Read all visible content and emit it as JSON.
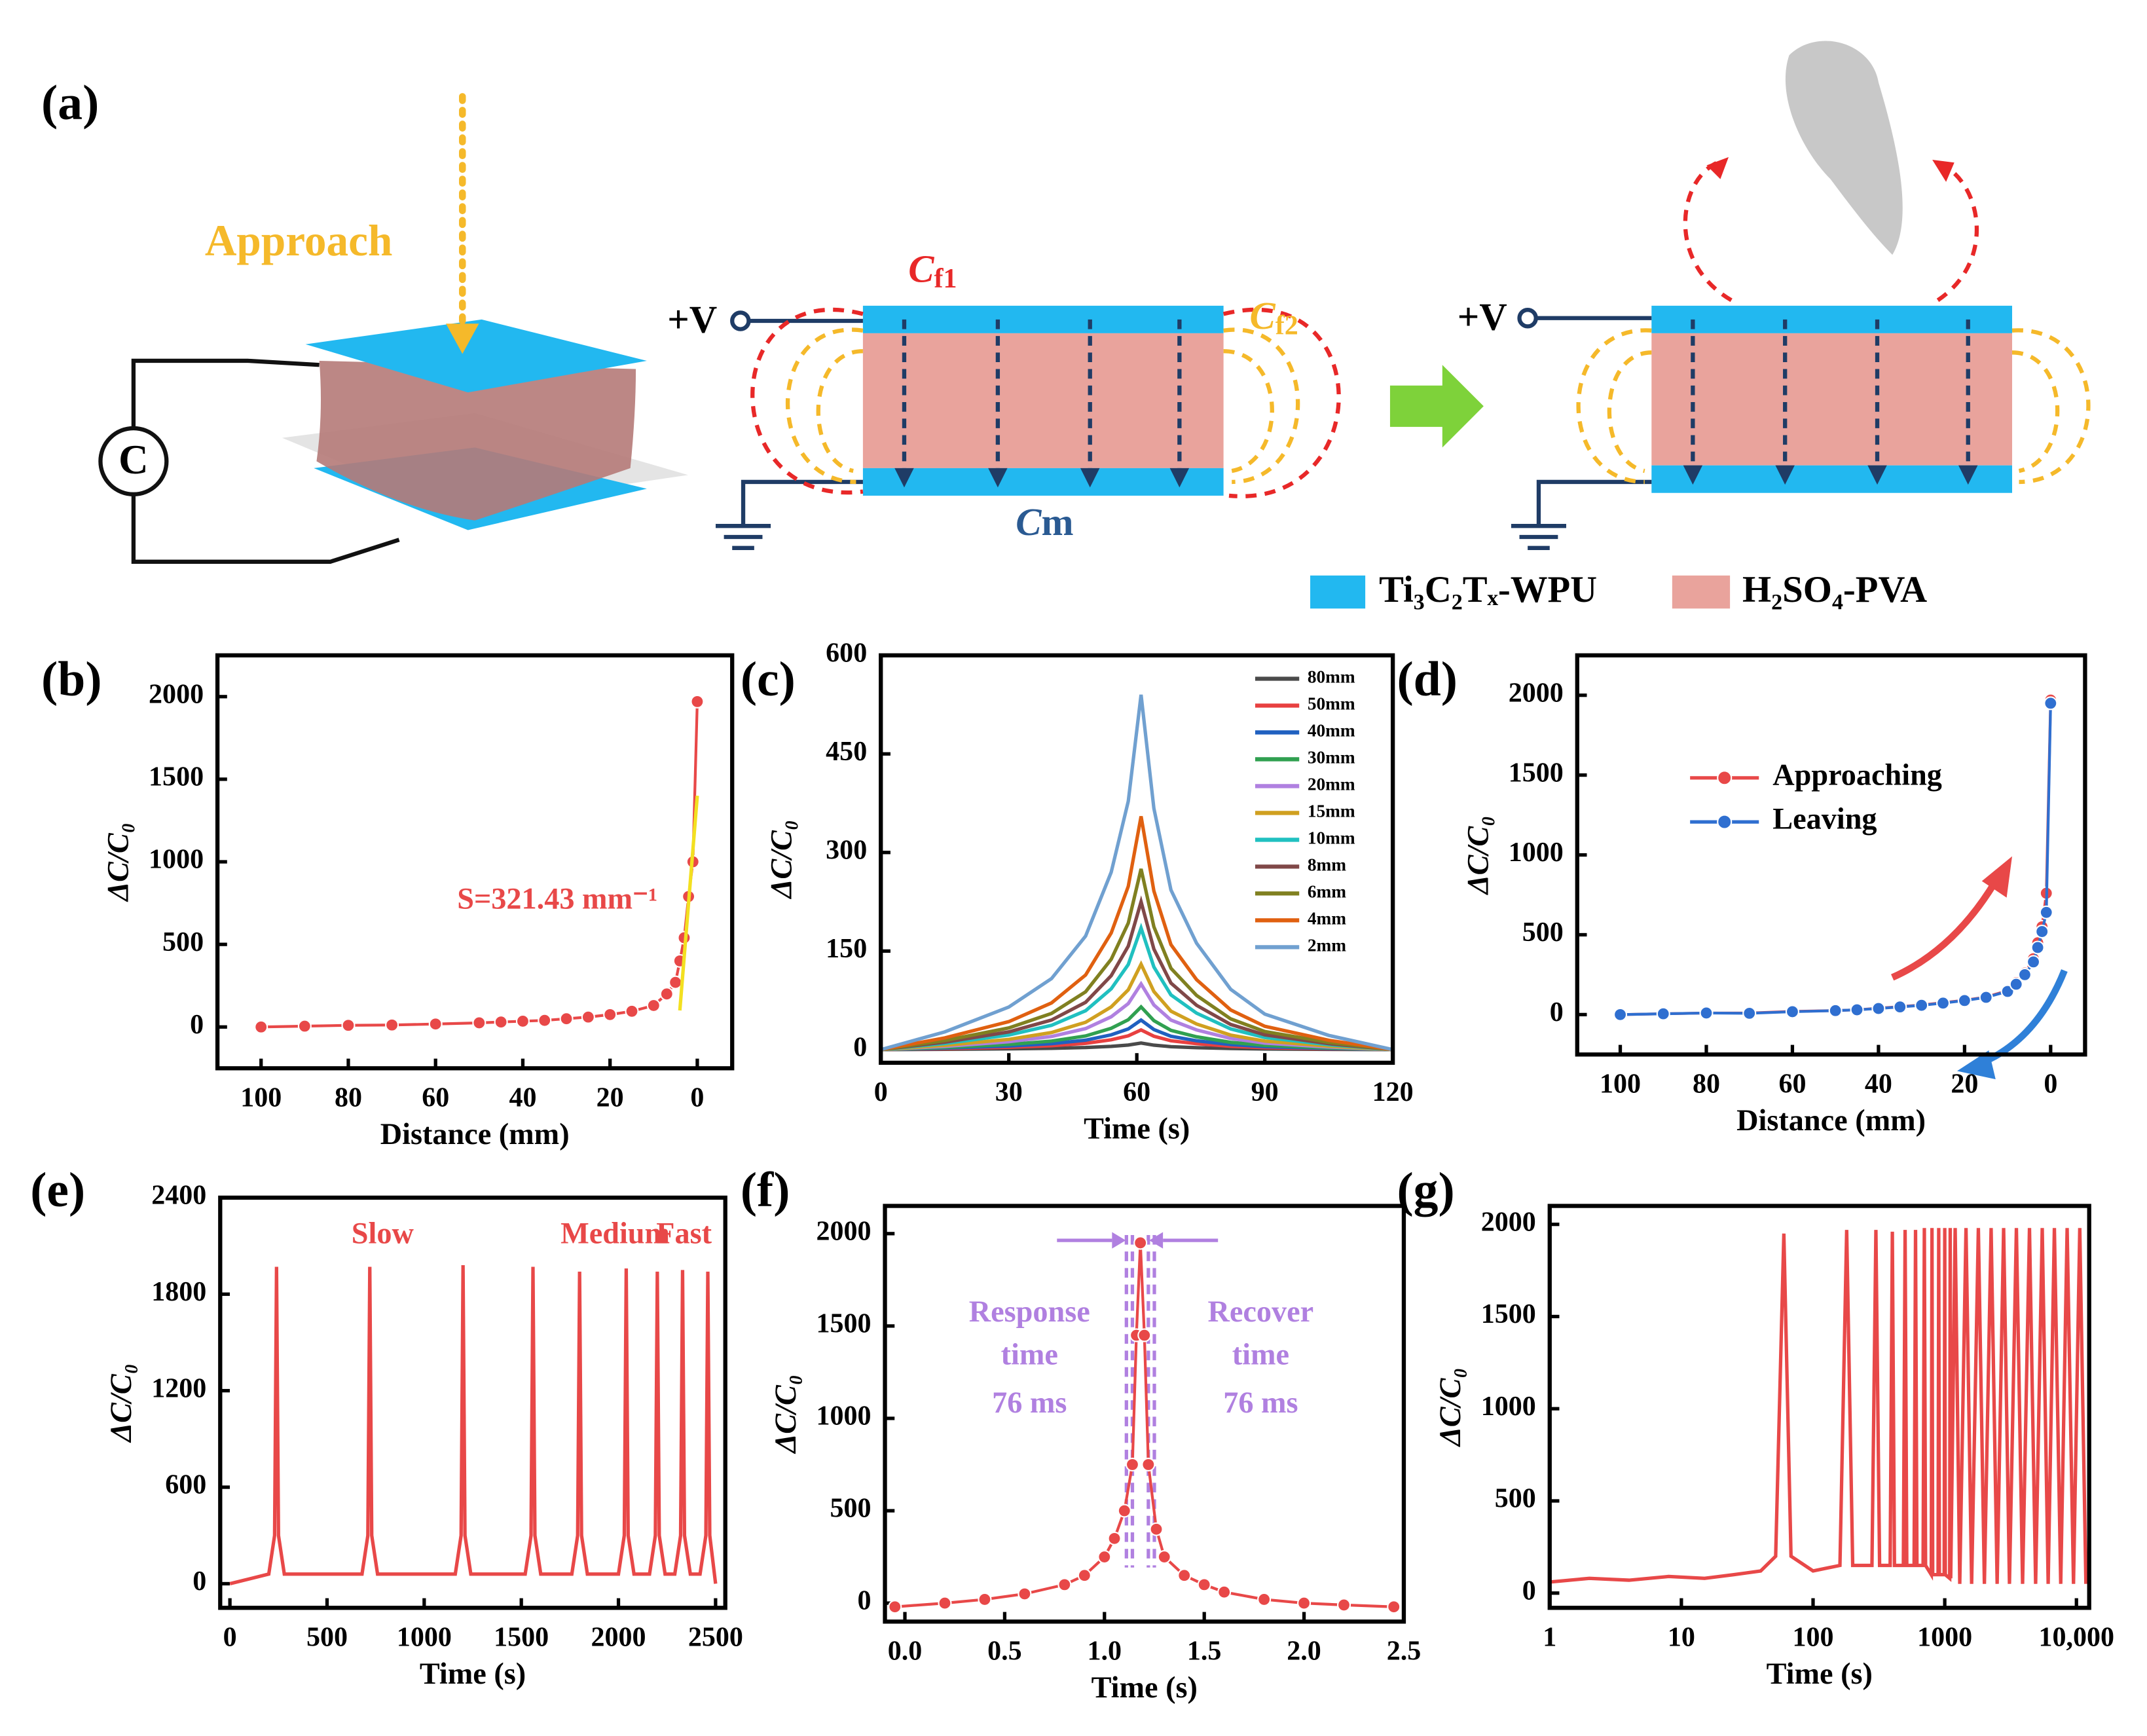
{
  "diagram": {
    "label": "(a)",
    "approach": "Approach",
    "meter": "C",
    "voltage": "+V",
    "cf1": {
      "main": "C",
      "sub": "f1"
    },
    "cf2": {
      "main": "C",
      "sub": "f2"
    },
    "cm": {
      "main": "C",
      "sub": "m"
    },
    "legend": [
      {
        "name": "Ti₃C₂Tₓ-WPU",
        "color": "#22b8f0"
      },
      {
        "name": "H₂SO₄-PVA",
        "color": "#e9a39c"
      }
    ]
  },
  "chart_data": [
    {
      "type": "line",
      "label": "(b)",
      "xlabel": "Distance (mm)",
      "ylabel": "ΔC/C₀",
      "markers": true,
      "xlim": [
        110,
        -8
      ],
      "ylim": [
        -250,
        2250
      ],
      "xticks": [
        100,
        80,
        60,
        40,
        20,
        0
      ],
      "yticks": [
        0,
        500,
        1000,
        1500,
        2000
      ],
      "series": [
        {
          "color": "#e84848",
          "x": [
            100,
            90,
            80,
            70,
            60,
            50,
            45,
            40,
            35,
            30,
            25,
            20,
            15,
            10,
            7,
            5,
            4,
            3,
            2,
            1,
            0
          ],
          "values": [
            0,
            5,
            10,
            12,
            18,
            25,
            30,
            35,
            40,
            50,
            60,
            75,
            95,
            130,
            200,
            270,
            400,
            540,
            790,
            1000,
            1970
          ]
        }
      ],
      "fit": {
        "color": "#f3e020",
        "x": [
          4,
          0
        ],
        "y": [
          100,
          1400
        ]
      },
      "annotations": [
        "S=321.43 mm⁻¹"
      ],
      "annotation_color": "#e84848"
    },
    {
      "type": "line",
      "label": "(c)",
      "xlabel": "Time (s)",
      "ylabel": "ΔC/C₀",
      "markers": false,
      "legend": "upper right",
      "xlim": [
        0,
        120
      ],
      "ylim": [
        -20,
        600
      ],
      "xticks": [
        0,
        30,
        60,
        90,
        120
      ],
      "yticks": [
        0,
        150,
        300,
        450,
        600
      ],
      "series": [
        {
          "name": "80mm",
          "color": "#4a4a4a",
          "x": [
            0,
            15,
            30,
            40,
            48,
            54,
            58,
            61,
            64,
            68,
            74,
            82,
            90,
            105,
            120
          ],
          "values": [
            0,
            0.5,
            1.2,
            2,
            3.2,
            5,
            7,
            10,
            6.8,
            4.5,
            3,
            1.7,
            1,
            0.4,
            0
          ]
        },
        {
          "name": "50mm",
          "color": "#e84040",
          "x": [
            0,
            15,
            30,
            40,
            48,
            54,
            58,
            61,
            64,
            68,
            74,
            82,
            90,
            105,
            120
          ],
          "values": [
            0,
            1.5,
            3.6,
            6,
            9.6,
            15,
            21,
            30,
            20.4,
            13.5,
            9,
            5.1,
            3,
            1.2,
            0
          ]
        },
        {
          "name": "40mm",
          "color": "#2060c0",
          "x": [
            0,
            15,
            30,
            40,
            48,
            54,
            58,
            61,
            64,
            68,
            74,
            82,
            90,
            105,
            120
          ],
          "values": [
            0,
            2.3,
            5.4,
            9,
            14.4,
            22.5,
            31.5,
            45,
            30.6,
            20.3,
            13.5,
            7.7,
            4.5,
            1.8,
            0
          ]
        },
        {
          "name": "30mm",
          "color": "#30a050",
          "x": [
            0,
            15,
            30,
            40,
            48,
            54,
            58,
            61,
            64,
            68,
            74,
            82,
            90,
            105,
            120
          ],
          "values": [
            0,
            3.3,
            7.8,
            13,
            20.8,
            32.5,
            45.5,
            65,
            44.2,
            29.3,
            19.5,
            11.1,
            6.5,
            2.6,
            0
          ]
        },
        {
          "name": "20mm",
          "color": "#b080e0",
          "x": [
            0,
            15,
            30,
            40,
            48,
            54,
            58,
            61,
            64,
            68,
            74,
            82,
            90,
            105,
            120
          ],
          "values": [
            0,
            5,
            12,
            20,
            32,
            50,
            70,
            100,
            68,
            45,
            30,
            17,
            10,
            4,
            0
          ]
        },
        {
          "name": "15mm",
          "color": "#d0a020",
          "x": [
            0,
            15,
            30,
            40,
            48,
            54,
            58,
            61,
            64,
            68,
            74,
            82,
            90,
            105,
            120
          ],
          "values": [
            0,
            6.5,
            15.6,
            26,
            41.6,
            65,
            91,
            130,
            88.4,
            58.5,
            39,
            22.1,
            13,
            5.2,
            0
          ]
        },
        {
          "name": "10mm",
          "color": "#20c0c0",
          "x": [
            0,
            15,
            30,
            40,
            48,
            54,
            58,
            61,
            64,
            68,
            74,
            82,
            90,
            105,
            120
          ],
          "values": [
            0,
            9.3,
            22.2,
            37,
            59.2,
            92.5,
            129.5,
            185,
            125.8,
            83.3,
            55.5,
            31.5,
            18.5,
            7.4,
            0
          ]
        },
        {
          "name": "8mm",
          "color": "#804848",
          "x": [
            0,
            15,
            30,
            40,
            48,
            54,
            58,
            61,
            64,
            68,
            74,
            82,
            90,
            105,
            120
          ],
          "values": [
            0,
            11.3,
            27,
            45,
            72,
            112.5,
            157.5,
            225,
            153,
            101.3,
            67.5,
            38.3,
            22.5,
            9,
            0
          ]
        },
        {
          "name": "6mm",
          "color": "#808020",
          "x": [
            0,
            15,
            30,
            40,
            48,
            54,
            58,
            61,
            64,
            68,
            74,
            82,
            90,
            105,
            120
          ],
          "values": [
            0,
            13.8,
            33,
            55,
            88,
            137.5,
            192.5,
            275,
            187,
            123.8,
            82.5,
            46.8,
            27.5,
            11,
            0
          ]
        },
        {
          "name": "4mm",
          "color": "#e06010",
          "x": [
            0,
            15,
            30,
            40,
            48,
            54,
            58,
            61,
            64,
            68,
            74,
            82,
            90,
            105,
            120
          ],
          "values": [
            0,
            17.8,
            42.6,
            71,
            113.6,
            177.5,
            248.5,
            355,
            241.4,
            159.8,
            106.5,
            60.4,
            35.5,
            14.2,
            0
          ]
        },
        {
          "name": "2mm",
          "color": "#70a0d0",
          "x": [
            0,
            15,
            30,
            40,
            48,
            54,
            58,
            61,
            64,
            68,
            74,
            82,
            90,
            105,
            120
          ],
          "values": [
            0,
            27,
            64.8,
            108,
            172.8,
            270,
            378,
            540,
            367.2,
            243,
            162,
            91.8,
            54,
            21.6,
            0
          ]
        }
      ]
    },
    {
      "type": "line",
      "label": "(d)",
      "xlabel": "Distance (mm)",
      "ylabel": "ΔC/C₀",
      "markers": true,
      "legend": "upper left",
      "xlim": [
        110,
        -8
      ],
      "ylim": [
        -250,
        2250
      ],
      "xticks": [
        100,
        80,
        60,
        40,
        20,
        0
      ],
      "yticks": [
        0,
        500,
        1000,
        1500,
        2000
      ],
      "series": [
        {
          "name": "Approaching",
          "color": "#e84848",
          "x": [
            100,
            90,
            80,
            70,
            60,
            50,
            45,
            40,
            35,
            30,
            25,
            20,
            15,
            10,
            8,
            6,
            4,
            3,
            2,
            1,
            0
          ],
          "values": [
            0,
            5,
            10,
            10,
            20,
            25,
            30,
            40,
            50,
            60,
            75,
            90,
            110,
            150,
            200,
            260,
            350,
            450,
            550,
            760,
            1970
          ]
        },
        {
          "name": "Leaving",
          "color": "#2f6fd0",
          "x": [
            100,
            90,
            80,
            70,
            60,
            50,
            45,
            40,
            35,
            30,
            25,
            20,
            15,
            10,
            8,
            6,
            4,
            3,
            2,
            1,
            0
          ],
          "values": [
            0,
            5,
            10,
            8,
            18,
            25,
            30,
            38,
            48,
            58,
            72,
            88,
            108,
            145,
            190,
            250,
            330,
            420,
            520,
            640,
            1950
          ]
        }
      ]
    },
    {
      "type": "line",
      "label": "(e)",
      "xlabel": "Time (s)",
      "ylabel": "ΔC/C₀",
      "markers": false,
      "xlim": [
        -50,
        2550
      ],
      "ylim": [
        -150,
        2400
      ],
      "xticks": [
        0,
        500,
        1000,
        1500,
        2000,
        2500
      ],
      "yticks": [
        0,
        600,
        1200,
        1800,
        2400
      ],
      "series": [
        {
          "color": "#e84848",
          "x": [
            0,
            200,
            230,
            240,
            250,
            280,
            680,
            710,
            720,
            730,
            760,
            1160,
            1190,
            1200,
            1210,
            1240,
            1520,
            1550,
            1560,
            1570,
            1600,
            1760,
            1790,
            1800,
            1810,
            1840,
            2000,
            2030,
            2040,
            2050,
            2080,
            2160,
            2190,
            2200,
            2210,
            2240,
            2290,
            2320,
            2330,
            2340,
            2370,
            2420,
            2450,
            2460,
            2470,
            2500
          ],
          "values": [
            0,
            60,
            300,
            1970,
            300,
            60,
            60,
            300,
            1970,
            300,
            60,
            60,
            300,
            1980,
            300,
            60,
            60,
            300,
            1970,
            300,
            60,
            60,
            300,
            1940,
            300,
            60,
            60,
            300,
            1960,
            300,
            60,
            60,
            300,
            1940,
            300,
            60,
            60,
            300,
            1950,
            300,
            60,
            60,
            300,
            1940,
            300,
            0
          ]
        }
      ],
      "annotations": [
        "Slow",
        "Medium",
        "Fast"
      ],
      "annotation_color": "#e84848"
    },
    {
      "type": "line",
      "label": "(f)",
      "xlabel": "Time (s)",
      "ylabel": "ΔC/C₀",
      "markers": true,
      "xlim": [
        -0.1,
        2.5
      ],
      "ylim": [
        -100,
        2150
      ],
      "xticks": [
        {
          "value": 0,
          "label": "0.0"
        },
        0.5,
        {
          "value": 1,
          "label": "1.0"
        },
        1.5,
        {
          "value": 2,
          "label": "2.0"
        },
        2.5
      ],
      "yticks": [
        0,
        500,
        1000,
        1500,
        2000
      ],
      "series": [
        {
          "color": "#e84848",
          "x": [
            -0.05,
            0.2,
            0.4,
            0.6,
            0.8,
            0.9,
            1.0,
            1.05,
            1.1,
            1.14,
            1.16,
            1.18,
            1.2,
            1.22,
            1.26,
            1.3,
            1.4,
            1.5,
            1.6,
            1.8,
            2.0,
            2.2,
            2.45
          ],
          "values": [
            -20,
            0,
            20,
            50,
            100,
            150,
            250,
            350,
            500,
            750,
            1450,
            1950,
            1450,
            750,
            400,
            250,
            150,
            100,
            60,
            20,
            0,
            -10,
            -20
          ]
        }
      ],
      "guides_x": [
        1.11,
        1.14,
        1.22,
        1.25
      ],
      "guide_color": "#b080e0",
      "annotations": [
        "Response",
        "time",
        "76 ms",
        "Recover",
        "time",
        "76 ms"
      ],
      "annotation_color": "#b080e0"
    },
    {
      "type": "line",
      "label": "(g)",
      "xlabel": "Time (s)",
      "ylabel": "ΔC/C₀",
      "markers": false,
      "xscale": "log",
      "xlim": [
        1,
        12500
      ],
      "ylim": [
        -80,
        2100
      ],
      "xticks": [
        1,
        10,
        100,
        1000,
        {
          "value": 10000,
          "label": "10,000"
        }
      ],
      "yticks": [
        0,
        500,
        1000,
        1500,
        2000
      ],
      "series": [
        {
          "color": "#e84848",
          "x": [
            1,
            2,
            4,
            8,
            15,
            25,
            40,
            52,
            60,
            68,
            100,
            160,
            180,
            200,
            280,
            300,
            320,
            385,
            400,
            415,
            485,
            500,
            515,
            585,
            600,
            615,
            685,
            700,
            715,
            790,
            800,
            810,
            890,
            900,
            910,
            990,
            1000,
            1010,
            1090,
            1100,
            1110,
            1200,
            1300,
            1450,
            1600,
            1800,
            2000,
            2250,
            2500,
            2800,
            3100,
            3500,
            3900,
            4400,
            4900,
            5500,
            6100,
            6800,
            7600,
            8500,
            9500,
            10600,
            11800
          ],
          "values": [
            60,
            80,
            70,
            90,
            80,
            100,
            120,
            200,
            1950,
            200,
            120,
            150,
            1970,
            150,
            150,
            1970,
            150,
            150,
            1960,
            150,
            150,
            1970,
            150,
            150,
            1970,
            150,
            150,
            1980,
            150,
            100,
            1980,
            100,
            100,
            1980,
            100,
            100,
            1980,
            100,
            80,
            1980,
            80,
            1980,
            50,
            1980,
            50,
            1980,
            50,
            1980,
            50,
            1980,
            50,
            1980,
            50,
            1980,
            50,
            1980,
            50,
            1980,
            50,
            1980,
            50,
            1980,
            50
          ]
        }
      ]
    }
  ]
}
